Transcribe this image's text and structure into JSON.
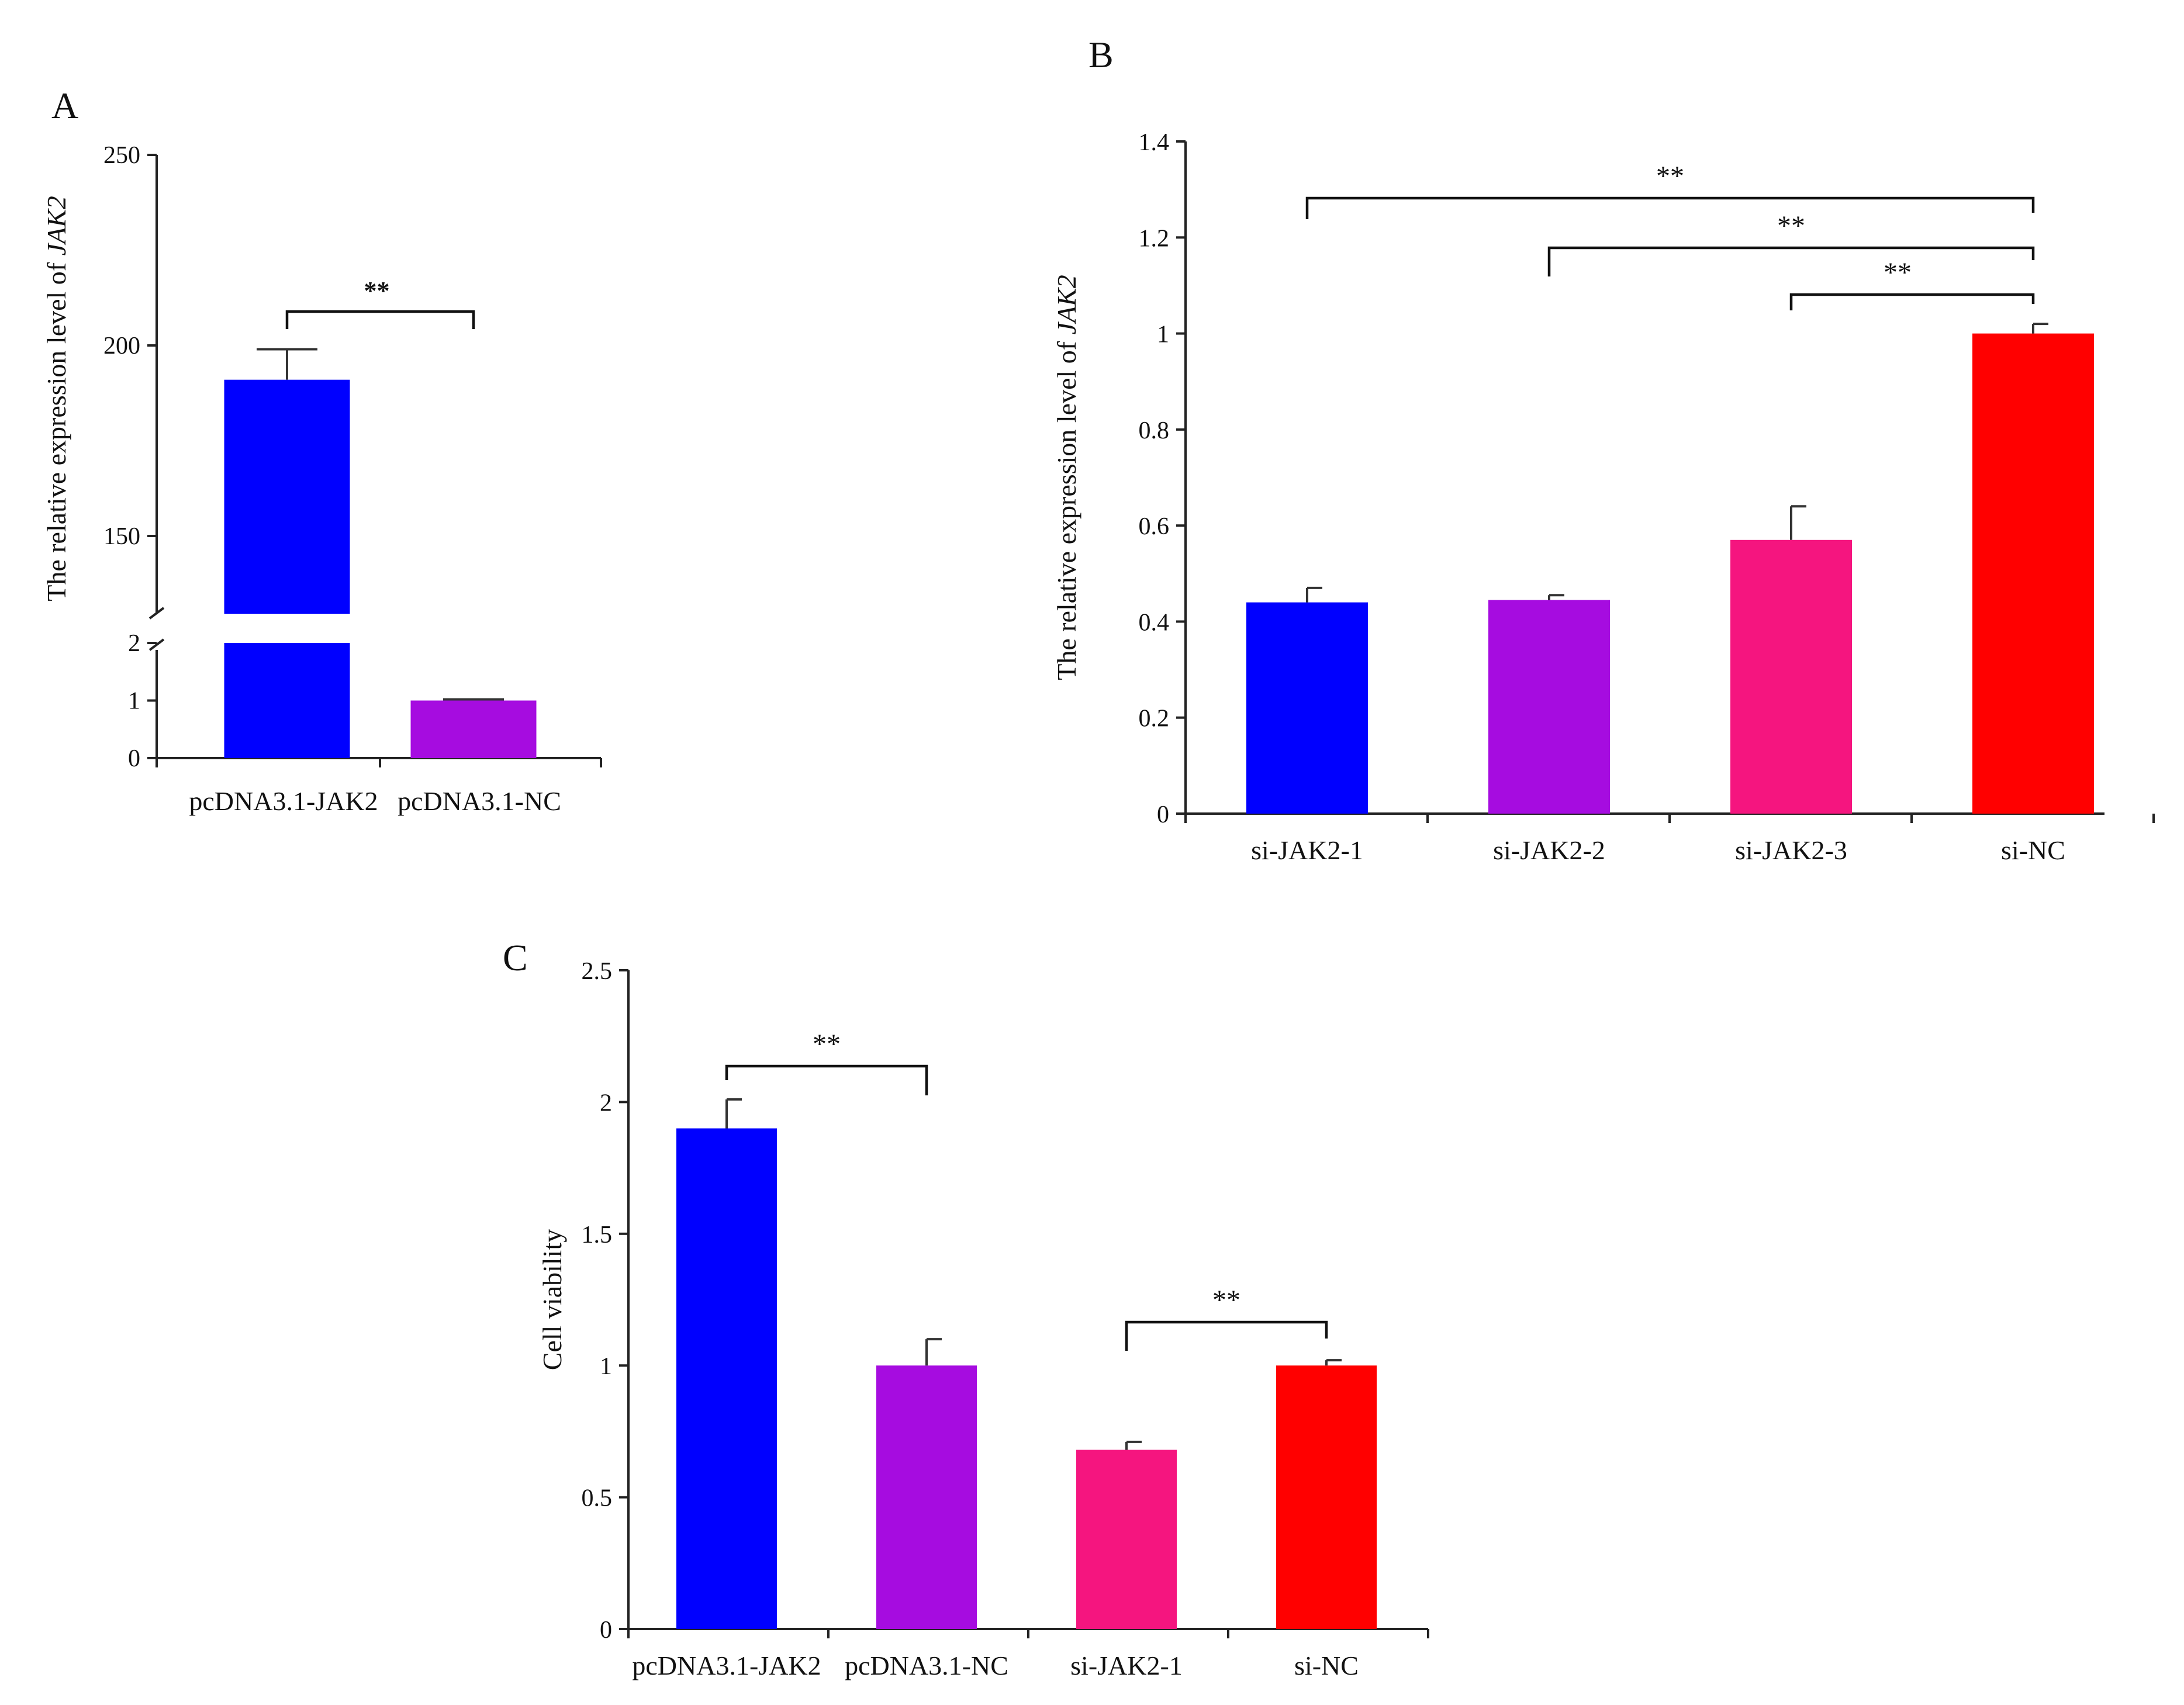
{
  "chart_data": [
    {
      "panel": "A",
      "type": "bar",
      "title": "",
      "xlabel": "",
      "ylabel": {
        "prefix": "The relative expression level of ",
        "gene": "JAK2"
      },
      "categories": [
        "pcDNA3.1-JAK2",
        "pcDNA3.1-NC"
      ],
      "values": [
        191,
        1
      ],
      "errors": [
        8,
        0.02
      ],
      "colors": [
        "#0000FF",
        "#A60CE0"
      ],
      "broken_axis": {
        "lower_range": [
          0,
          2
        ],
        "upper_range": [
          125,
          250
        ]
      },
      "yticks": [
        0,
        1,
        2,
        150,
        200,
        250
      ],
      "significance": [
        {
          "from": 0,
          "to": 1,
          "label": "**"
        }
      ]
    },
    {
      "panel": "B",
      "type": "bar",
      "title": "",
      "xlabel": "",
      "ylabel": {
        "prefix": "The relative expression level of ",
        "gene": "JAK2"
      },
      "categories": [
        "si-JAK2-1",
        "si-JAK2-2",
        "si-JAK2-3",
        "si-NC"
      ],
      "values": [
        0.44,
        0.445,
        0.57,
        1.0
      ],
      "errors": [
        0.03,
        0.01,
        0.07,
        0.02
      ],
      "colors": [
        "#0000FF",
        "#A60CE0",
        "#F5157F",
        "#FF0000"
      ],
      "ylim": [
        0,
        1.4
      ],
      "yticks": [
        "0",
        "0.2",
        "0.4",
        "0.6",
        "0.8",
        "1",
        "1.2",
        "1.4"
      ],
      "significance": [
        {
          "from": 0,
          "to": 3,
          "label": "**"
        },
        {
          "from": 1,
          "to": 3,
          "label": "**"
        },
        {
          "from": 2,
          "to": 3,
          "label": "**"
        }
      ]
    },
    {
      "panel": "C",
      "type": "bar",
      "title": "",
      "xlabel": "",
      "ylabel": {
        "prefix": "Cell viability",
        "gene": ""
      },
      "categories": [
        "pcDNA3.1-JAK2",
        "pcDNA3.1-NC",
        "si-JAK2-1",
        "si-NC"
      ],
      "values": [
        1.9,
        1.0,
        0.68,
        1.0
      ],
      "errors": [
        0.11,
        0.1,
        0.03,
        0.02
      ],
      "colors": [
        "#0000FF",
        "#A60CE0",
        "#F5157F",
        "#FF0000"
      ],
      "ylim": [
        0,
        2.5
      ],
      "yticks": [
        "0",
        "0.5",
        "1",
        "1.5",
        "2",
        "2.5"
      ],
      "significance": [
        {
          "from": 0,
          "to": 1,
          "label": "**"
        },
        {
          "from": 2,
          "to": 3,
          "label": "**"
        }
      ]
    }
  ]
}
